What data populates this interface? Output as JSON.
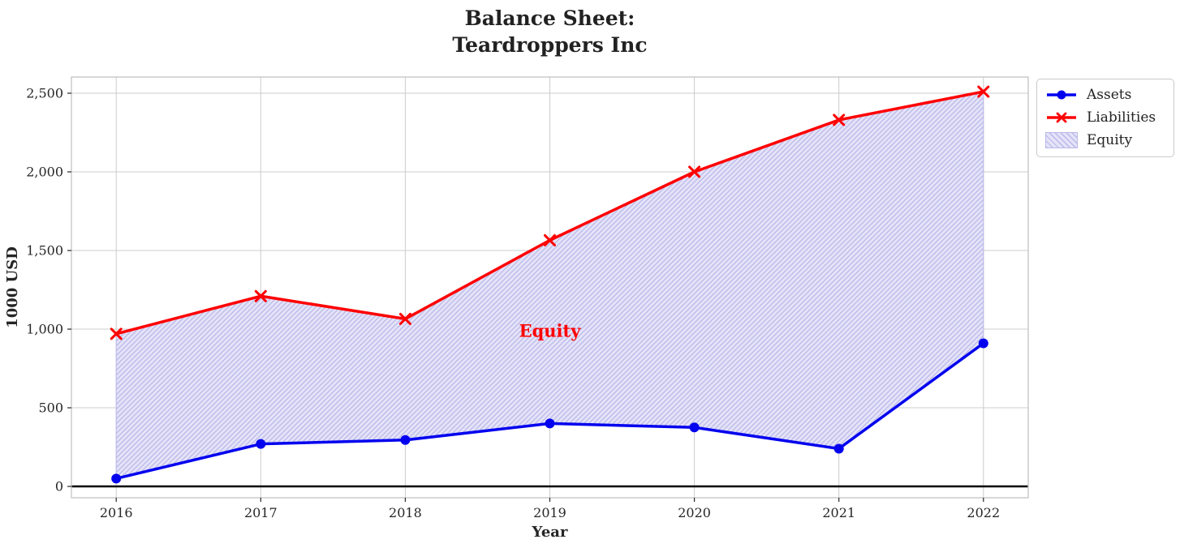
{
  "title": {
    "line1": "Balance Sheet:",
    "line2": "Teardroppers Inc"
  },
  "legend": {
    "items": [
      {
        "label": "Assets",
        "type": "line-circle",
        "color": "#0202ee"
      },
      {
        "label": "Liabilities",
        "type": "line-x",
        "color": "#ff0000"
      },
      {
        "label": "Equity",
        "type": "hatch-patch",
        "facecolor": "#e4e3f8",
        "hatch_color": "#b9b8ea"
      }
    ]
  },
  "chart_data": {
    "type": "line",
    "title": "Balance Sheet: Teardroppers Inc",
    "xlabel": "Year",
    "ylabel": "1000 USD",
    "categories": [
      2016,
      2017,
      2018,
      2019,
      2020,
      2021,
      2022
    ],
    "x_tick_labels": [
      "2016",
      "2017",
      "2018",
      "2019",
      "2020",
      "2021",
      "2022"
    ],
    "series": [
      {
        "name": "Assets",
        "color": "#0202ee",
        "marker": "circle",
        "values": [
          50,
          270,
          295,
          400,
          375,
          240,
          910
        ]
      },
      {
        "name": "Liabilities",
        "color": "#ff0000",
        "marker": "x",
        "values": [
          970,
          1210,
          1065,
          1565,
          2000,
          2330,
          2510
        ]
      }
    ],
    "fill_between": {
      "label": "Equity",
      "between": [
        "Assets",
        "Liabilities"
      ],
      "facecolor": "#e4e3f8",
      "hatch": "//",
      "hatch_color": "#b9b8ea"
    },
    "annotation": {
      "text": "Equity",
      "x": 2019,
      "y": 1000,
      "color": "#ff0000"
    },
    "yticks": {
      "values": [
        0,
        500,
        1000,
        1500,
        2000,
        2500
      ],
      "labels": [
        "0",
        "500",
        "1,000",
        "1,500",
        "2,000",
        "2,500"
      ]
    },
    "xlim": [
      2015.69,
      2022.31
    ],
    "ylim": [
      -72,
      2603
    ],
    "grid": true,
    "grid_color": "#cccccc",
    "spine_color": "#c4c4c4",
    "tick_color": "#262626",
    "text_color": "#262626",
    "zero_line": {
      "y": 0,
      "color": "#000000"
    },
    "legend_position": "upper right outside plot"
  }
}
